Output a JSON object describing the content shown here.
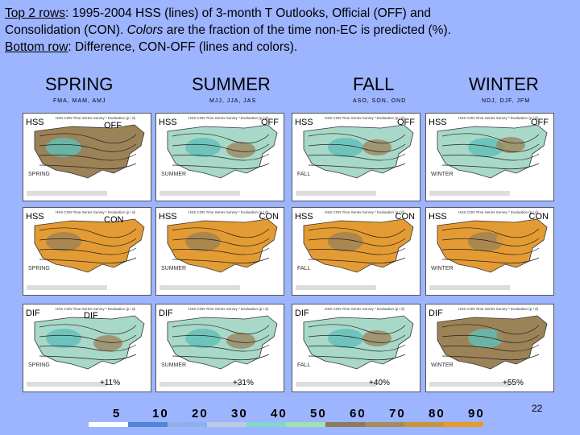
{
  "header": {
    "line1_label": "Top 2 rows",
    "line1_text": ":  1995-2004 HSS (lines) of 3-month T Outlooks, Official (OFF) and",
    "line2_text_a": "Consolidation (CON).  ",
    "line2_text_b": "Colors",
    "line2_text_c": " are the fraction of the time non-EC is predicted (%).",
    "line3_label": "Bottom row",
    "line3_text": ":  Difference, CON-OFF (lines and colors)."
  },
  "seasons": [
    {
      "name": "SPRING",
      "months": "FMA, MAM, AMJ"
    },
    {
      "name": "SUMMER",
      "months": "MJJ, JJA, JAS"
    },
    {
      "name": "FALL",
      "months": "ASO, SON, OND"
    },
    {
      "name": "WINTER",
      "months": "NDJ, DJF, JFM"
    }
  ],
  "rows": [
    {
      "left_tag": "HSS",
      "right_tag": "OFF"
    },
    {
      "left_tag": "HSS",
      "right_tag": "CON"
    },
    {
      "left_tag": "DIF",
      "right_tag": "DIF"
    }
  ],
  "panel_season_labels": [
    "SPRING",
    "SUMMER",
    "FALL",
    "WINTER"
  ],
  "panel_title_text": "HSS CON Time Series Survey * Evaluation (p / d)",
  "diff_percents": [
    "+11%",
    "+31%",
    "+40%",
    "+55%"
  ],
  "colorbar_labels": [
    "5",
    "10",
    "20",
    "30",
    "40",
    "50",
    "60",
    "70",
    "80",
    "90"
  ],
  "colorbar_colors": [
    "#ffffff",
    "#4f86d6",
    "#8fb0e8",
    "#b9cbe3",
    "#7fd7d0",
    "#9fe3b0",
    "#8d7a5a",
    "#a88b5c",
    "#c8953a",
    "#e89a2a"
  ],
  "slide_number": "22",
  "colors": {
    "background": "#9db4ff",
    "low_fraction": "#5fbfb9",
    "mid_fraction": "#a8d8c8",
    "brown": "#9c8257",
    "orange": "#e49b33"
  }
}
